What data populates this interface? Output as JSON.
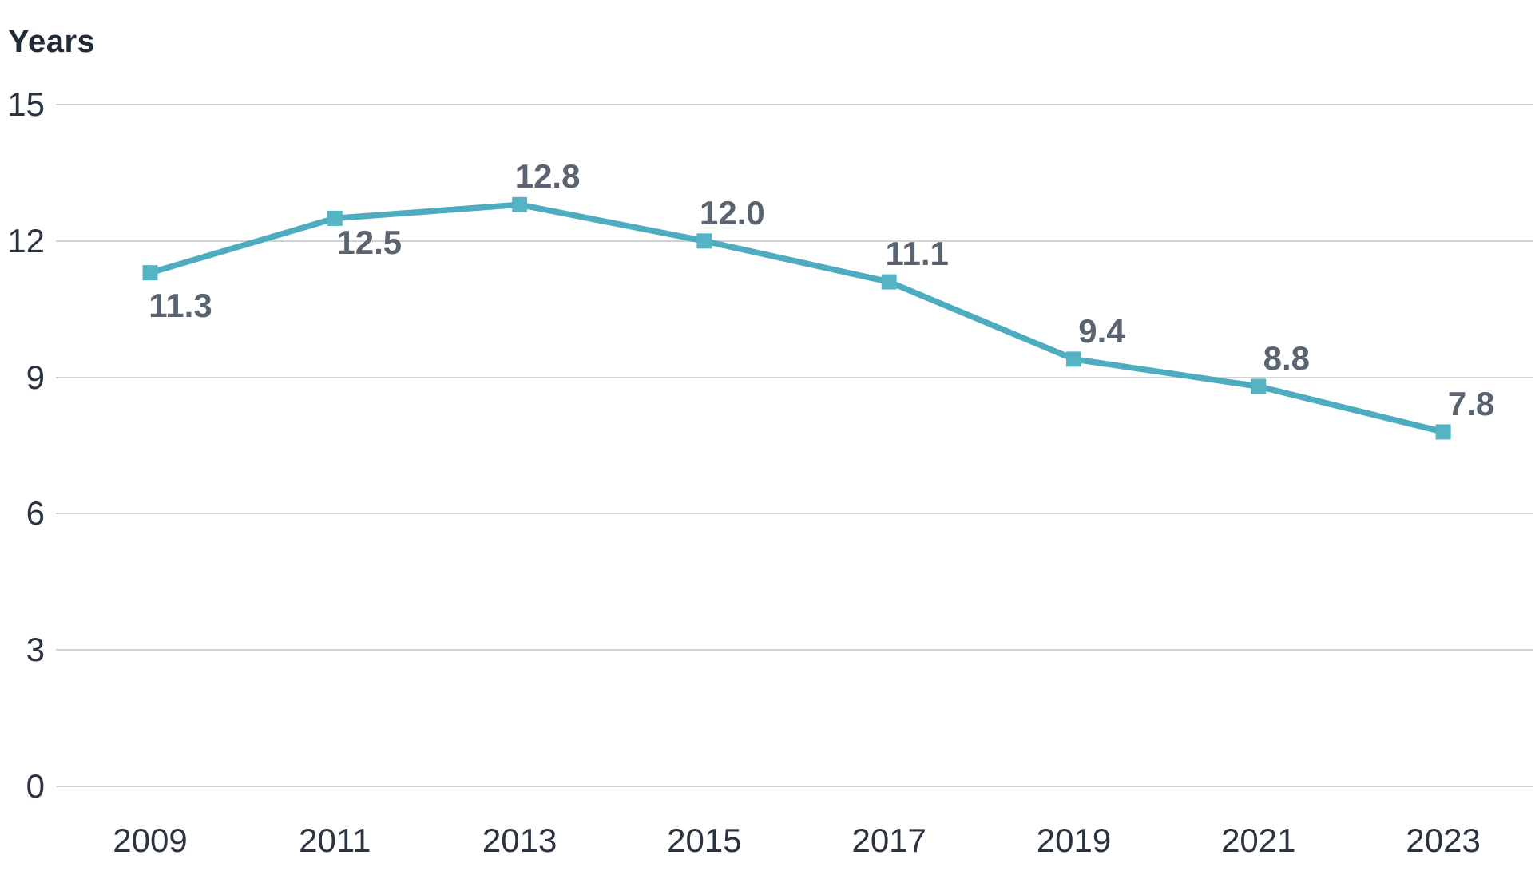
{
  "chart_data": {
    "type": "line",
    "title": "",
    "ylabel": "Years",
    "xlabel": "",
    "categories": [
      "2009",
      "2011",
      "2013",
      "2015",
      "2017",
      "2019",
      "2021",
      "2023"
    ],
    "series": [
      {
        "name": "years",
        "values": [
          11.3,
          12.5,
          12.8,
          12.0,
          11.1,
          9.4,
          8.8,
          7.8
        ]
      }
    ],
    "data_labels": [
      "11.3",
      "12.5",
      "12.8",
      "12.0",
      "11.1",
      "9.4",
      "8.8",
      "7.8"
    ],
    "data_label_positions": [
      "below",
      "below",
      "above",
      "above",
      "above",
      "above",
      "above",
      "above"
    ],
    "yticks": [
      0,
      3,
      6,
      9,
      12,
      15
    ],
    "ylim": [
      0,
      15
    ],
    "grid": "horizontal-only",
    "legend": "none",
    "marker_shape": "square",
    "colors": {
      "line": "#4dacbf",
      "marker": "#55b3c4",
      "grid": "#ccd3d5",
      "axis_text": "#2b3340",
      "data_label_text": "#5a6470",
      "title_text": "#222b38",
      "background": "#ffffff"
    }
  }
}
